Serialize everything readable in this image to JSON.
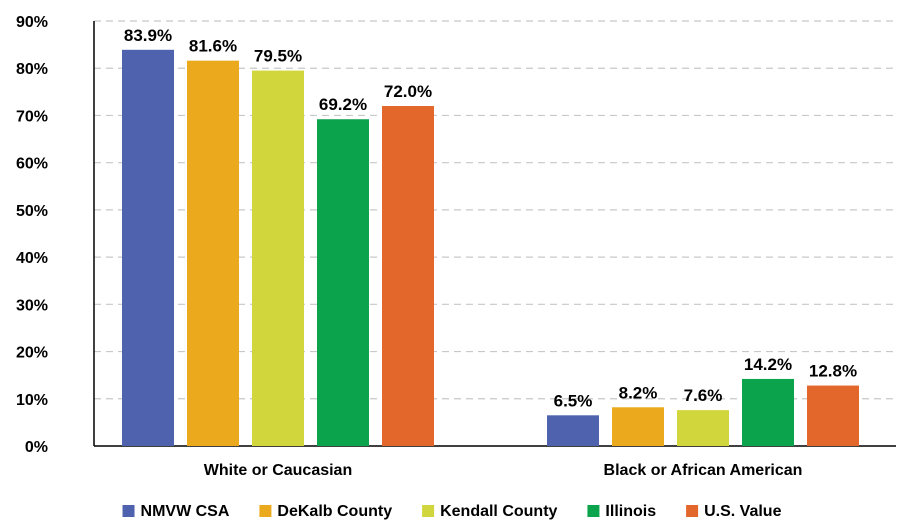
{
  "chart_data": {
    "type": "bar",
    "title": "",
    "xlabel": "",
    "ylabel": "",
    "categories": [
      "White or Caucasian",
      "Black or African American"
    ],
    "series": [
      {
        "name": "NMVW CSA",
        "color": "#4F62AE",
        "values": [
          83.9,
          6.5
        ],
        "labels": [
          "83.9%",
          "6.5%"
        ]
      },
      {
        "name": "DeKalb County",
        "color": "#EBAA1E",
        "values": [
          81.6,
          8.2
        ],
        "labels": [
          "81.6%",
          "8.2%"
        ]
      },
      {
        "name": "Kendall County",
        "color": "#D2D63D",
        "values": [
          79.5,
          7.6
        ],
        "labels": [
          "79.5%",
          "7.6%"
        ]
      },
      {
        "name": "Illinois",
        "color": "#0BA44C",
        "values": [
          69.2,
          14.2
        ],
        "labels": [
          "69.2%",
          "14.2%"
        ]
      },
      {
        "name": "U.S. Value",
        "color": "#E3662A",
        "values": [
          72.0,
          12.8
        ],
        "labels": [
          "72.0%",
          "12.8%"
        ]
      }
    ],
    "ylim": [
      0,
      90
    ],
    "yticks": [
      0,
      10,
      20,
      30,
      40,
      50,
      60,
      70,
      80,
      90
    ],
    "ytick_labels": [
      "0%",
      "10%",
      "20%",
      "30%",
      "40%",
      "50%",
      "60%",
      "70%",
      "80%",
      "90%"
    ],
    "grid": true,
    "grid_style": "dashed",
    "grid_color": "#C8C8C8",
    "legend_position": "bottom"
  }
}
